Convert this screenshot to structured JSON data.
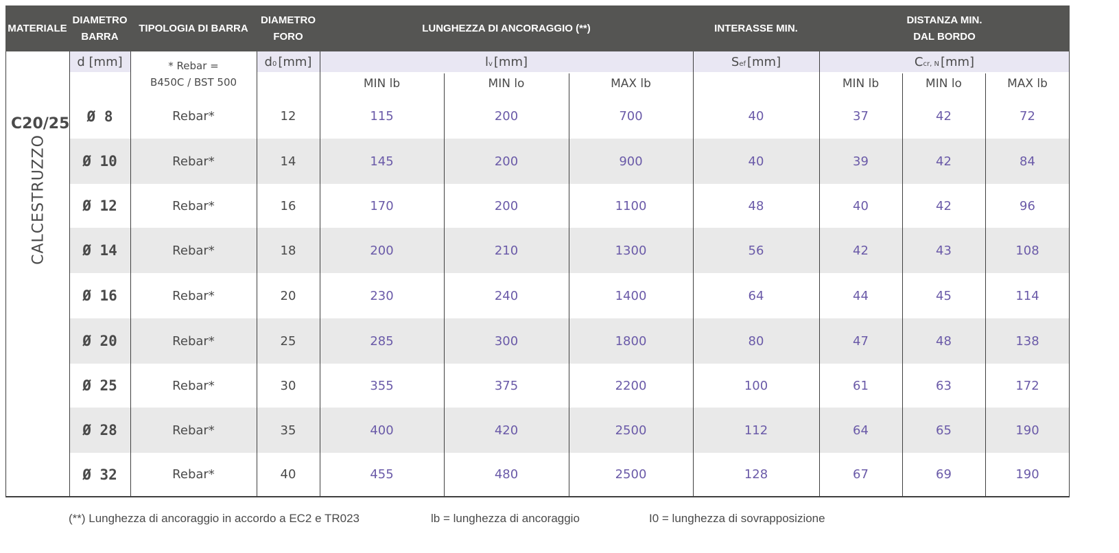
{
  "header": {
    "materiale": "MATERIALE",
    "diametro_barra": [
      "DIAMETRO",
      "BARRA"
    ],
    "tipologia": "TIPOLOGIA DI BARRA",
    "diametro_foro": [
      "DIAMETRO",
      "FORO"
    ],
    "lunghezza": "LUNGHEZZA DI ANCORAGGIO (**)",
    "interasse": "INTERASSE MIN.",
    "distanza": [
      "DISTANZA MIN.",
      "DAL BORDO"
    ]
  },
  "units": {
    "d": "d [mm]",
    "rebar_note": [
      "* Rebar =",
      "B450C / BST 500"
    ],
    "d0_main": "d",
    "d0_sub": "0",
    "d0_rest": " [mm]",
    "lv_main": "l",
    "lv_sub": "v",
    "lv_rest": " [mm]",
    "sef_main": "S",
    "sef_sub": "ef",
    "sef_rest": " [mm]",
    "ccr_main": "C",
    "ccr_sub": "cr, N",
    "ccr_rest": " [mm]"
  },
  "subheaders": {
    "len_min_lb": "MIN lb",
    "len_min_lo": "MIN lo",
    "len_max_lb": "MAX lb",
    "dist_min_lb": "MIN lb",
    "dist_min_lo": "MIN lo",
    "dist_max_lb": "MAX lb"
  },
  "material": {
    "grade": "C20/25",
    "name": "CALCESTRUZZO"
  },
  "rows": [
    {
      "diam": "Ø 8",
      "type": "Rebar*",
      "foro": "12",
      "min_lb": "115",
      "min_lo": "200",
      "max_lb": "700",
      "interasse": "40",
      "d_min_lb": "37",
      "d_min_lo": "42",
      "d_max_lb": "72"
    },
    {
      "diam": "Ø 10",
      "type": "Rebar*",
      "foro": "14",
      "min_lb": "145",
      "min_lo": "200",
      "max_lb": "900",
      "interasse": "40",
      "d_min_lb": "39",
      "d_min_lo": "42",
      "d_max_lb": "84"
    },
    {
      "diam": "Ø 12",
      "type": "Rebar*",
      "foro": "16",
      "min_lb": "170",
      "min_lo": "200",
      "max_lb": "1100",
      "interasse": "48",
      "d_min_lb": "40",
      "d_min_lo": "42",
      "d_max_lb": "96"
    },
    {
      "diam": "Ø 14",
      "type": "Rebar*",
      "foro": "18",
      "min_lb": "200",
      "min_lo": "210",
      "max_lb": "1300",
      "interasse": "56",
      "d_min_lb": "42",
      "d_min_lo": "43",
      "d_max_lb": "108"
    },
    {
      "diam": "Ø 16",
      "type": "Rebar*",
      "foro": "20",
      "min_lb": "230",
      "min_lo": "240",
      "max_lb": "1400",
      "interasse": "64",
      "d_min_lb": "44",
      "d_min_lo": "45",
      "d_max_lb": "114"
    },
    {
      "diam": "Ø 20",
      "type": "Rebar*",
      "foro": "25",
      "min_lb": "285",
      "min_lo": "300",
      "max_lb": "1800",
      "interasse": "80",
      "d_min_lb": "47",
      "d_min_lo": "48",
      "d_max_lb": "138"
    },
    {
      "diam": "Ø 25",
      "type": "Rebar*",
      "foro": "30",
      "min_lb": "355",
      "min_lo": "375",
      "max_lb": "2200",
      "interasse": "100",
      "d_min_lb": "61",
      "d_min_lo": "63",
      "d_max_lb": "172"
    },
    {
      "diam": "Ø 28",
      "type": "Rebar*",
      "foro": "35",
      "min_lb": "400",
      "min_lo": "420",
      "max_lb": "2500",
      "interasse": "112",
      "d_min_lb": "64",
      "d_min_lo": "65",
      "d_max_lb": "190"
    },
    {
      "diam": "Ø 32",
      "type": "Rebar*",
      "foro": "40",
      "min_lb": "455",
      "min_lo": "480",
      "max_lb": "2500",
      "interasse": "128",
      "d_min_lb": "67",
      "d_min_lo": "69",
      "d_max_lb": "190"
    }
  ],
  "notes": {
    "note1": "(**) Lunghezza di ancoraggio in accordo a EC2 e TR023",
    "note2": "lb = lunghezza di ancoraggio",
    "note3": "I0 = lunghezza di sovrapposizione"
  },
  "colors": {
    "header_bg": "#555553",
    "value_text": "#6a5aa8",
    "unit_band": "#e9e7f3",
    "stripe": "#e9e9e9"
  }
}
